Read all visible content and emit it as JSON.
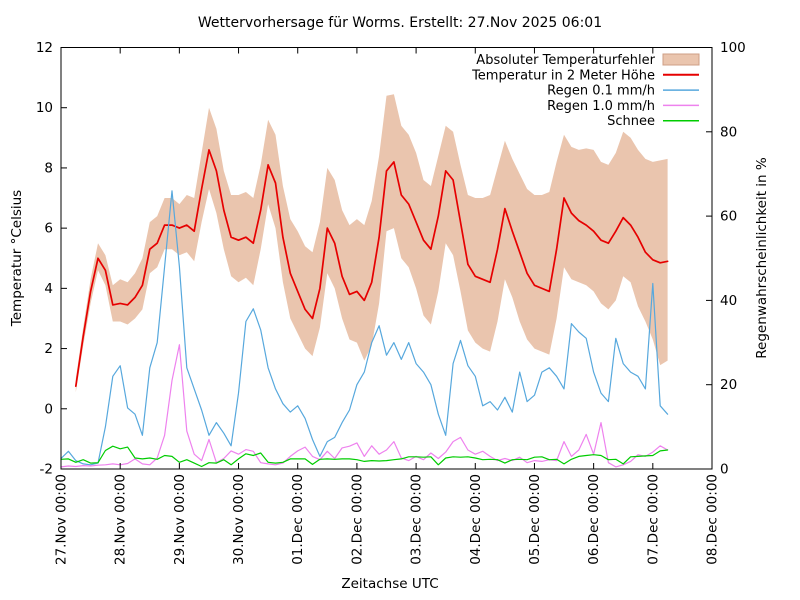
{
  "chart_data": {
    "type": "line",
    "title": "Wettervorhersage für Worms. Erstellt: 27.Nov 2025 06:01",
    "xlabel": "Zeitachse UTC",
    "ylabel_left": "Temperatur °Celsius",
    "ylabel_right": "Regenwahrscheinlichkeit in %",
    "grid": false,
    "legend_position": "top-right",
    "x_axis": {
      "unit": "days since 27.Nov 2025 00:00 UTC",
      "range_days": [
        0,
        11
      ],
      "tick_days": [
        0,
        1,
        2,
        3,
        4,
        5,
        6,
        7,
        8,
        9,
        10,
        11
      ],
      "tick_labels": [
        "27.Nov 00:00",
        "28.Nov 00:00",
        "29.Nov 00:00",
        "30.Nov 00:00",
        "01.Dec 00:00",
        "02.Dec 00:00",
        "03.Dec 00:00",
        "04.Dec 00:00",
        "05.Dec 00:00",
        "06.Dec 00:00",
        "07.Dec 00:00",
        "08.Dec 00:00"
      ]
    },
    "y_axis_left": {
      "range": [
        -2,
        12
      ],
      "ticks": [
        -2,
        0,
        2,
        4,
        6,
        8,
        10,
        12
      ]
    },
    "y_axis_right": {
      "range": [
        0,
        100
      ],
      "ticks": [
        0,
        20,
        40,
        60,
        80,
        100
      ]
    },
    "series": [
      {
        "name": "Absoluter Temperaturfehler",
        "type": "band",
        "axis": "left",
        "color": "#eac5ae",
        "swatch_border": "#cf9f85",
        "x_start": 0.25,
        "x_step": 0.125,
        "upper": [
          1.0,
          2.7,
          4.3,
          5.5,
          5.1,
          4.1,
          4.3,
          4.2,
          4.5,
          5.0,
          6.2,
          6.4,
          7.0,
          7.0,
          6.8,
          7.1,
          7.0,
          8.5,
          10.0,
          9.3,
          7.9,
          7.1,
          7.1,
          7.2,
          7.0,
          8.1,
          9.6,
          9.1,
          7.4,
          6.3,
          5.9,
          5.4,
          5.2,
          6.2,
          8.0,
          7.6,
          6.6,
          6.1,
          6.3,
          6.1,
          6.9,
          8.4,
          10.4,
          10.45,
          9.4,
          9.1,
          8.5,
          7.6,
          7.4,
          8.4,
          9.4,
          9.2,
          8.1,
          7.1,
          7.0,
          7.0,
          7.1,
          8.0,
          8.9,
          8.3,
          7.8,
          7.3,
          7.1,
          7.1,
          7.2,
          8.2,
          9.1,
          8.7,
          8.6,
          8.65,
          8.6,
          8.2,
          8.1,
          8.5,
          9.2,
          9.0,
          8.6,
          8.3,
          8.2,
          8.25,
          8.3
        ],
        "lower": [
          0.55,
          2.1,
          3.5,
          4.6,
          4.1,
          2.9,
          2.9,
          2.8,
          3.0,
          3.3,
          4.5,
          4.7,
          5.3,
          5.3,
          5.1,
          5.2,
          4.9,
          6.2,
          7.3,
          6.5,
          5.3,
          4.4,
          4.2,
          4.35,
          4.1,
          5.3,
          6.8,
          6.0,
          4.2,
          3.0,
          2.5,
          2.0,
          1.75,
          2.7,
          4.5,
          4.0,
          3.0,
          2.3,
          2.2,
          1.6,
          2.1,
          3.5,
          5.9,
          6.0,
          5.0,
          4.7,
          4.0,
          3.1,
          2.8,
          3.9,
          5.5,
          5.1,
          3.9,
          2.6,
          2.2,
          2.0,
          1.9,
          2.9,
          4.3,
          3.7,
          2.9,
          2.3,
          2.0,
          1.9,
          1.8,
          3.0,
          4.7,
          4.3,
          4.2,
          4.1,
          3.9,
          3.5,
          3.3,
          3.6,
          4.4,
          4.2,
          3.4,
          2.9,
          2.3,
          1.45,
          1.6
        ]
      },
      {
        "name": "Temperatur in 2 Meter Höhe",
        "type": "line",
        "axis": "left",
        "color": "#e60000",
        "width": 1.7,
        "x_start": 0.25,
        "x_step": 0.125,
        "values": [
          0.75,
          2.4,
          3.9,
          5.0,
          4.6,
          3.45,
          3.5,
          3.45,
          3.7,
          4.1,
          5.3,
          5.5,
          6.1,
          6.1,
          6.0,
          6.1,
          5.9,
          7.3,
          8.6,
          7.9,
          6.6,
          5.7,
          5.6,
          5.7,
          5.5,
          6.6,
          8.1,
          7.5,
          5.7,
          4.5,
          3.9,
          3.3,
          3.0,
          4.0,
          6.0,
          5.5,
          4.4,
          3.8,
          3.9,
          3.6,
          4.2,
          5.7,
          7.9,
          8.2,
          7.1,
          6.8,
          6.2,
          5.6,
          5.3,
          6.4,
          7.9,
          7.6,
          6.2,
          4.8,
          4.4,
          4.3,
          4.2,
          5.3,
          6.65,
          5.9,
          5.2,
          4.5,
          4.1,
          4.0,
          3.9,
          5.3,
          7.0,
          6.5,
          6.25,
          6.1,
          5.9,
          5.6,
          5.5,
          5.9,
          6.35,
          6.1,
          5.7,
          5.2,
          4.95,
          4.85,
          4.9
        ]
      },
      {
        "name": "Regen 0.1 mm/h",
        "type": "line",
        "axis": "right",
        "color": "#57a8dd",
        "width": 1.2,
        "x_start": 0.0,
        "x_step": 0.125,
        "values": [
          2.5,
          4.2,
          2.0,
          1.2,
          1.0,
          1.4,
          10,
          22,
          24.5,
          14.5,
          13,
          8,
          24,
          30,
          48,
          66,
          48,
          24,
          19,
          14,
          8,
          11,
          8.5,
          5.5,
          18,
          35,
          38,
          33,
          24,
          19,
          15.5,
          13.5,
          15,
          12,
          7,
          3,
          6.5,
          7.5,
          11,
          14,
          20,
          23,
          30,
          34,
          27,
          30,
          26,
          30,
          25,
          23,
          20,
          13,
          8,
          25,
          30.5,
          24.5,
          22,
          15,
          16,
          14,
          17,
          13.5,
          23,
          16,
          17.5,
          23,
          24,
          22,
          19,
          34.5,
          32.5,
          31,
          23,
          18,
          16,
          31,
          25,
          23,
          22,
          19,
          44,
          15,
          13
        ]
      },
      {
        "name": "Regen 1.0 mm/h",
        "type": "line",
        "axis": "right",
        "color": "#ee82ee",
        "width": 1.2,
        "x_start": 0.0,
        "x_step": 0.125,
        "values": [
          0.5,
          0.7,
          0.6,
          0.8,
          0.7,
          0.9,
          1.0,
          1.2,
          1.0,
          1.3,
          2.4,
          1.2,
          1.0,
          2.6,
          8,
          21,
          29.5,
          9,
          3.5,
          2.0,
          7.0,
          1.5,
          2.5,
          4.3,
          3.5,
          4.6,
          4.2,
          1.5,
          1.2,
          1.0,
          1.4,
          3.0,
          4.3,
          5.2,
          3.0,
          2.2,
          4.2,
          2.5,
          5.0,
          5.4,
          6.2,
          3.0,
          5.5,
          3.5,
          4.5,
          6.5,
          2.6,
          2.0,
          3.0,
          2.2,
          3.8,
          2.5,
          4.0,
          6.5,
          7.5,
          4.5,
          3.5,
          4.2,
          3.0,
          2.0,
          2.5,
          2.0,
          2.8,
          1.5,
          2.0,
          1.8,
          2.2,
          2.0,
          6.5,
          3.0,
          4.5,
          8.2,
          3.5,
          11,
          1.5,
          0.5,
          1.0,
          1.8,
          3.4,
          3.0,
          4.0,
          5.5,
          4.5
        ]
      },
      {
        "name": "Schnee",
        "type": "line",
        "axis": "right",
        "color": "#00cc00",
        "width": 1.2,
        "x_start": 0.0,
        "x_step": 0.125,
        "values": [
          2.3,
          2.4,
          1.6,
          2.2,
          1.4,
          1.5,
          4.4,
          5.4,
          4.8,
          5.2,
          2.6,
          2.4,
          2.6,
          2.3,
          3.2,
          3.0,
          1.6,
          2.2,
          1.4,
          0.6,
          1.5,
          1.4,
          2.2,
          1.0,
          2.4,
          3.6,
          3.2,
          3.8,
          1.6,
          1.4,
          1.6,
          2.4,
          2.4,
          2.4,
          1.1,
          2.3,
          2.4,
          2.3,
          2.4,
          2.4,
          2.2,
          1.8,
          2.0,
          1.9,
          2.0,
          2.2,
          2.4,
          2.9,
          2.9,
          2.8,
          2.9,
          1.0,
          2.6,
          2.9,
          2.8,
          2.9,
          2.6,
          2.2,
          2.3,
          2.2,
          1.4,
          2.2,
          2.3,
          2.2,
          2.8,
          2.9,
          2.2,
          2.3,
          1.2,
          2.3,
          3.0,
          3.2,
          3.4,
          3.2,
          2.2,
          2.3,
          1.2,
          2.9,
          3.0,
          3.1,
          3.2,
          4.3,
          4.5
        ]
      }
    ]
  }
}
